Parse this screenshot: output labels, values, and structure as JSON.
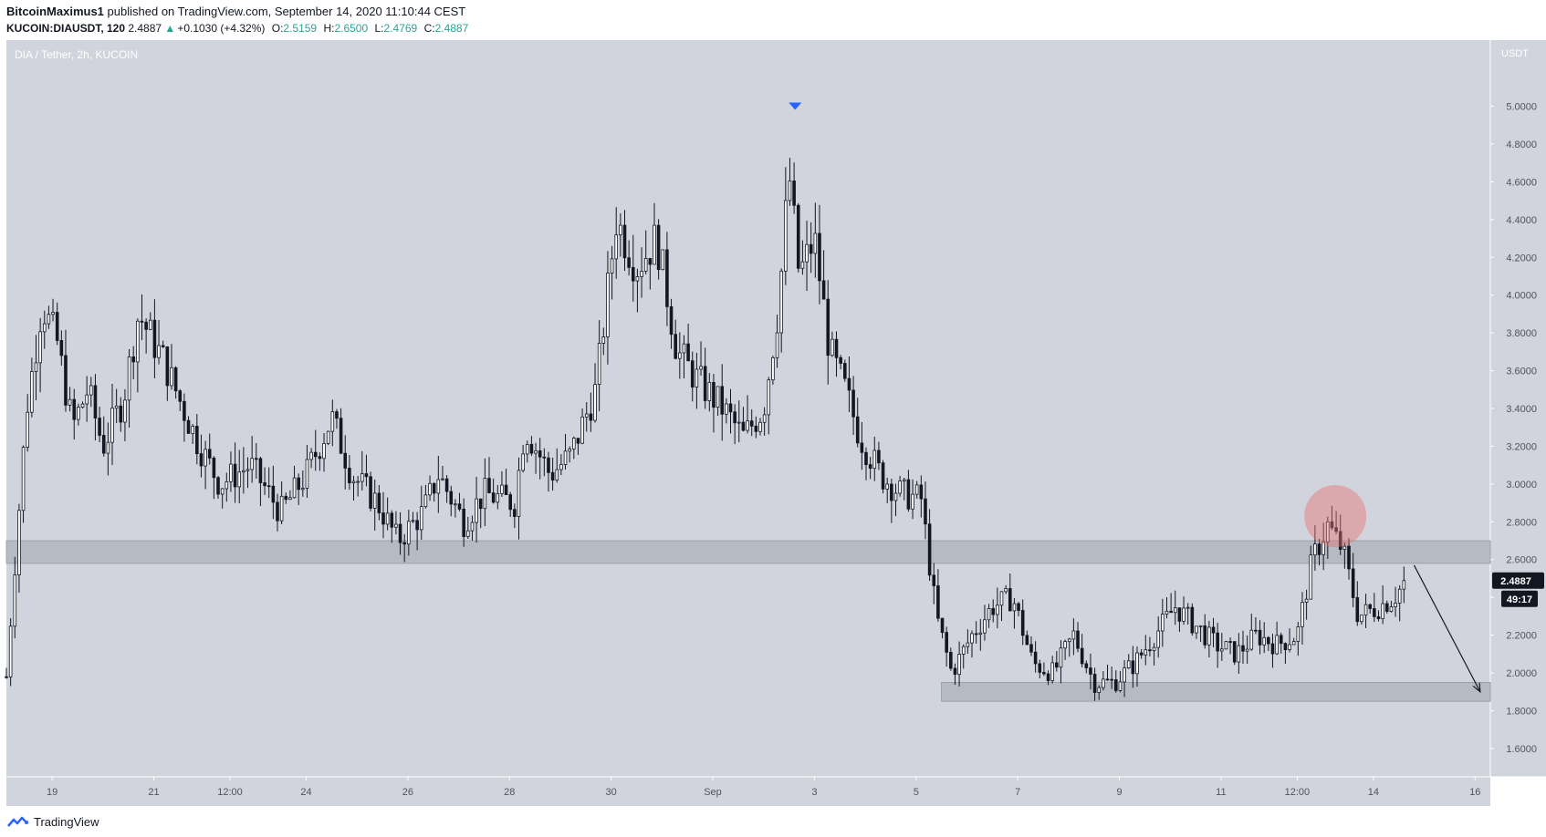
{
  "header": {
    "author": "BitcoinMaximus1",
    "published": "published on TradingView.com, September 14, 2020 11:10:44 CEST",
    "symbol": "KUCOIN:DIAUSDT, 120",
    "last": "2.4887",
    "change_arrow": "▲",
    "change": "+0.1030 (+4.32%)",
    "open_label": "O:",
    "open": "2.5159",
    "high_label": "H:",
    "high": "2.6500",
    "low_label": "L:",
    "low": "2.4769",
    "close_label": "C:",
    "close": "2.4887"
  },
  "chart_data": {
    "type": "candlestick",
    "pane_title": "DIA / Tether, 2h, KUCOIN",
    "currency": "USDT",
    "ylim": [
      1.45,
      5.35
    ],
    "y_ticks": [
      "5.0000",
      "4.8000",
      "4.6000",
      "4.4000",
      "4.2000",
      "4.0000",
      "3.8000",
      "3.6000",
      "3.4000",
      "3.2000",
      "3.0000",
      "2.8000",
      "2.6000",
      "2.4000",
      "2.2000",
      "2.0000",
      "1.8000",
      "1.6000"
    ],
    "x_ticks": [
      {
        "label": "19",
        "t": 1.1
      },
      {
        "label": "21",
        "t": 3.1
      },
      {
        "label": "12:00",
        "t": 4.6
      },
      {
        "label": "24",
        "t": 6.1
      },
      {
        "label": "26",
        "t": 8.1
      },
      {
        "label": "28",
        "t": 10.1
      },
      {
        "label": "30",
        "t": 12.1
      },
      {
        "label": "Sep",
        "t": 14.1
      },
      {
        "label": "3",
        "t": 16.1
      },
      {
        "label": "5",
        "t": 18.1
      },
      {
        "label": "7",
        "t": 20.1
      },
      {
        "label": "9",
        "t": 22.1
      },
      {
        "label": "11",
        "t": 24.1
      },
      {
        "label": "12:00",
        "t": 25.6
      },
      {
        "label": "14",
        "t": 27.1
      },
      {
        "label": "16",
        "t": 29.1
      }
    ],
    "x_range_days": [
      0.2,
      29.4
    ],
    "price_path": [
      [
        0.2,
        1.98
      ],
      [
        0.4,
        2.7
      ],
      [
        0.6,
        3.4
      ],
      [
        0.9,
        3.95
      ],
      [
        1.2,
        3.75
      ],
      [
        1.5,
        3.3
      ],
      [
        1.8,
        3.5
      ],
      [
        2.1,
        3.2
      ],
      [
        2.5,
        3.45
      ],
      [
        2.8,
        3.9
      ],
      [
        3.3,
        3.65
      ],
      [
        3.6,
        3.45
      ],
      [
        4.0,
        3.2
      ],
      [
        4.4,
        3.0
      ],
      [
        5.0,
        3.1
      ],
      [
        5.6,
        2.85
      ],
      [
        6.1,
        3.05
      ],
      [
        6.6,
        3.35
      ],
      [
        7.0,
        3.05
      ],
      [
        7.5,
        2.9
      ],
      [
        7.9,
        2.7
      ],
      [
        8.4,
        2.85
      ],
      [
        8.7,
        3.05
      ],
      [
        9.2,
        2.8
      ],
      [
        9.6,
        2.95
      ],
      [
        10.2,
        2.9
      ],
      [
        10.4,
        3.3
      ],
      [
        10.9,
        3.05
      ],
      [
        11.3,
        3.15
      ],
      [
        11.8,
        3.5
      ],
      [
        12.2,
        4.4
      ],
      [
        12.6,
        4.15
      ],
      [
        13.0,
        4.3
      ],
      [
        13.4,
        3.7
      ],
      [
        13.8,
        3.55
      ],
      [
        14.3,
        3.4
      ],
      [
        14.7,
        3.25
      ],
      [
        15.1,
        3.4
      ],
      [
        15.4,
        3.95
      ],
      [
        15.6,
        4.65
      ],
      [
        15.8,
        4.1
      ],
      [
        16.1,
        4.3
      ],
      [
        16.4,
        3.7
      ],
      [
        16.7,
        3.5
      ],
      [
        17.0,
        3.25
      ],
      [
        17.4,
        3.05
      ],
      [
        17.8,
        2.95
      ],
      [
        18.2,
        2.92
      ],
      [
        18.5,
        2.3
      ],
      [
        18.8,
        2.0
      ],
      [
        19.2,
        2.2
      ],
      [
        19.6,
        2.35
      ],
      [
        20.0,
        2.4
      ],
      [
        20.4,
        2.05
      ],
      [
        20.8,
        2.0
      ],
      [
        21.2,
        2.2
      ],
      [
        21.6,
        1.95
      ],
      [
        22.0,
        1.95
      ],
      [
        22.4,
        2.05
      ],
      [
        22.8,
        2.2
      ],
      [
        23.2,
        2.35
      ],
      [
        23.6,
        2.25
      ],
      [
        24.0,
        2.15
      ],
      [
        24.4,
        2.1
      ],
      [
        24.8,
        2.2
      ],
      [
        25.2,
        2.15
      ],
      [
        25.6,
        2.2
      ],
      [
        25.9,
        2.6
      ],
      [
        26.2,
        2.78
      ],
      [
        26.5,
        2.65
      ],
      [
        26.8,
        2.3
      ],
      [
        27.2,
        2.35
      ],
      [
        27.5,
        2.4
      ],
      [
        27.75,
        2.4887
      ]
    ],
    "peak_marker": {
      "t": 15.72,
      "price": 5.0
    },
    "zones": [
      {
        "t_start": 0.2,
        "t_end": 29.4,
        "price_low": 2.58,
        "price_high": 2.7
      },
      {
        "t_start": 18.6,
        "t_end": 29.4,
        "price_low": 1.85,
        "price_high": 1.95
      }
    ],
    "highlight_circle": {
      "t": 26.35,
      "price": 2.83
    },
    "forecast_arrow": {
      "from_t": 27.9,
      "from_price": 2.57,
      "to_t": 29.2,
      "to_price": 1.9
    },
    "last_price_label": "2.4887",
    "countdown_label": "49:17"
  },
  "footer": {
    "brand": "TradingView"
  },
  "colors": {
    "pane_bg": "#d1d4dc",
    "candle": "#131722",
    "zone": "#b2b5be",
    "highlight": "#e57373",
    "marker": "#2962ff",
    "axis_text": "#50535e"
  }
}
